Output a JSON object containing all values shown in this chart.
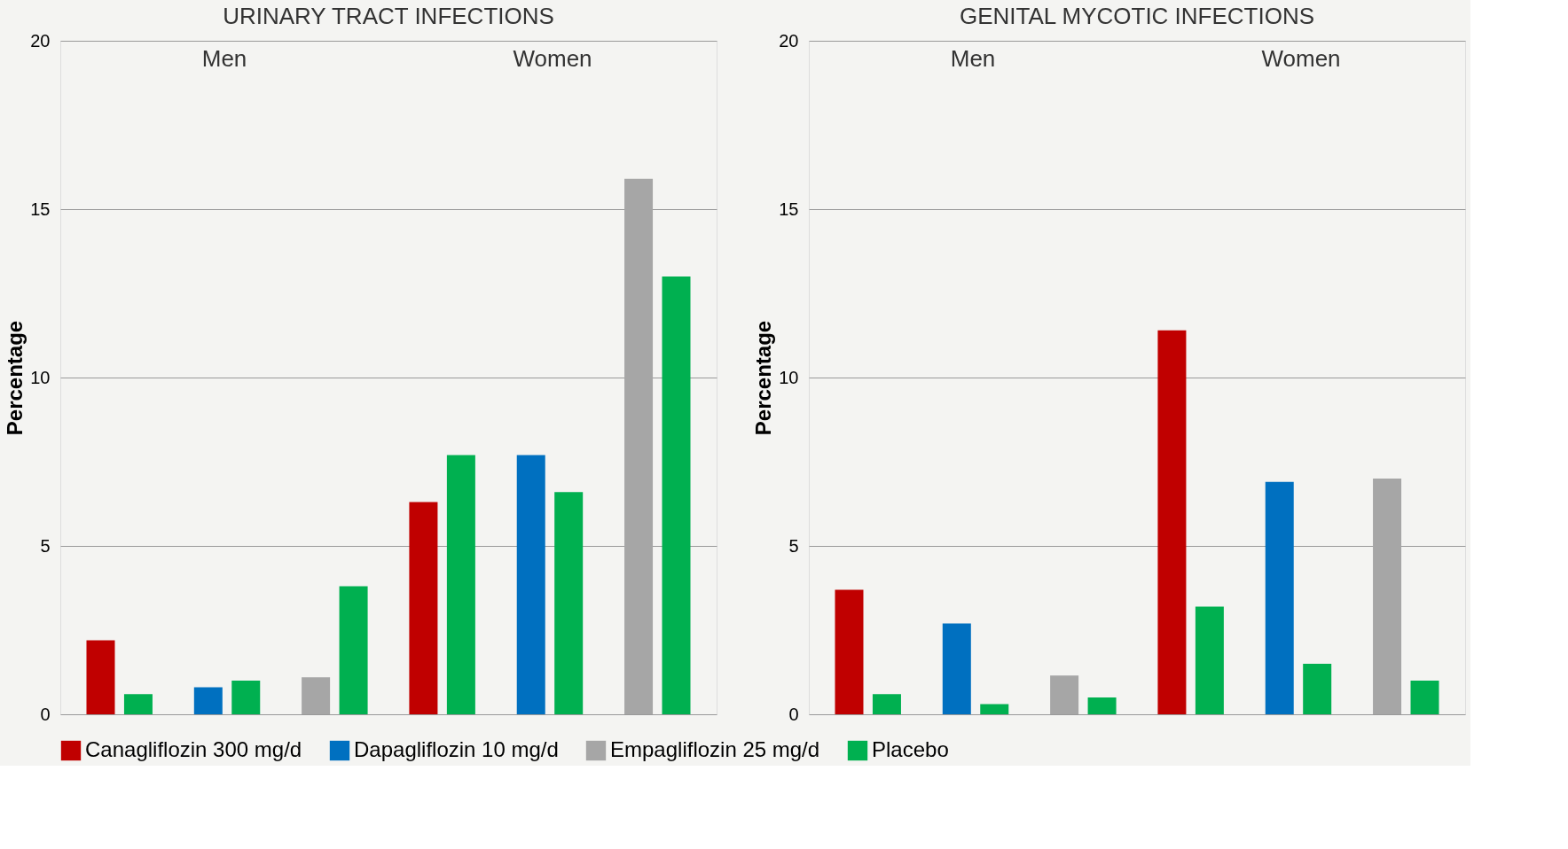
{
  "chart_data": [
    {
      "type": "bar",
      "title": "URINARY TRACT INFECTIONS",
      "ylabel": "Percentage",
      "categories": [
        null,
        null,
        null,
        null,
        null,
        null
      ],
      "annotations": [
        "Men",
        "Women"
      ],
      "ylim": [
        0,
        20
      ],
      "yticks": [
        0,
        5,
        10,
        15,
        20
      ],
      "grid": "y",
      "legend": "bottom",
      "series": [
        {
          "name": "Canagliflozin 300 mg/d",
          "color": "#c00000",
          "values": [
            2.2,
            null,
            null,
            6.3,
            null,
            null
          ]
        },
        {
          "name": "Dapagliflozin 10 mg/d",
          "color": "#0070c0",
          "values": [
            null,
            0.8,
            null,
            null,
            7.7,
            null
          ]
        },
        {
          "name": "Empagliflozin 25 mg/d",
          "color": "#a6a6a6",
          "values": [
            null,
            null,
            1.1,
            null,
            null,
            15.9
          ]
        },
        {
          "name": "Placebo",
          "color": "#00b050",
          "values": [
            0.6,
            1.0,
            3.8,
            7.7,
            6.6,
            13.0
          ]
        }
      ]
    },
    {
      "type": "bar",
      "title": "GENITAL MYCOTIC INFECTIONS",
      "ylabel": "Percentage",
      "categories": [
        null,
        null,
        null,
        null,
        null,
        null
      ],
      "annotations": [
        "Men",
        "Women"
      ],
      "ylim": [
        0,
        20
      ],
      "yticks": [
        0,
        5,
        10,
        15,
        20
      ],
      "grid": "y",
      "legend": "bottom",
      "series": [
        {
          "name": "Canagliflozin 300 mg/d",
          "color": "#c00000",
          "values": [
            3.7,
            null,
            null,
            11.4,
            null,
            null
          ]
        },
        {
          "name": "Dapagliflozin 10 mg/d",
          "color": "#0070c0",
          "values": [
            null,
            2.7,
            null,
            null,
            6.9,
            null
          ]
        },
        {
          "name": "Empagliflozin 25 mg/d",
          "color": "#a6a6a6",
          "values": [
            null,
            null,
            1.15,
            null,
            null,
            7.0
          ]
        },
        {
          "name": "Placebo",
          "color": "#00b050",
          "values": [
            0.6,
            0.3,
            0.5,
            3.2,
            1.5,
            1.0
          ]
        }
      ]
    }
  ]
}
